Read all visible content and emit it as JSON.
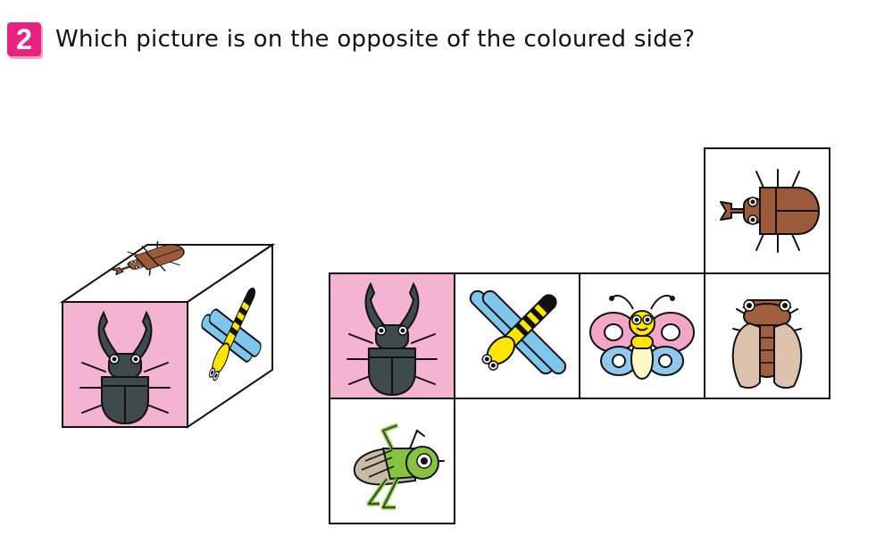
{
  "question": {
    "number": "2",
    "text": "Which picture is on the opposite of the coloured side?"
  },
  "colors": {
    "badge": "#e6247f",
    "coloured_face": "#f4b3d1",
    "beetle_body": "#3f4a4d",
    "dragonfly_wing": "#7fc6ec",
    "dragonfly_body": "#ffe600",
    "rhino_beetle": "#9b5a3a",
    "cicada_body": "#a0603f",
    "cicada_wing": "#ddc3ad",
    "grasshopper": "#86c440",
    "butterfly_upper": "#f3a6c8",
    "butterfly_lower": "#8fc9ee"
  },
  "cube": {
    "front": "stag-beetle",
    "top": "rhinoceros-beetle",
    "right": "dragonfly"
  },
  "net": {
    "cells": [
      "rhinoceros-beetle",
      "stag-beetle",
      "dragonfly",
      "butterfly",
      "cicada",
      "grasshopper"
    ],
    "coloured_cell": "stag-beetle"
  }
}
